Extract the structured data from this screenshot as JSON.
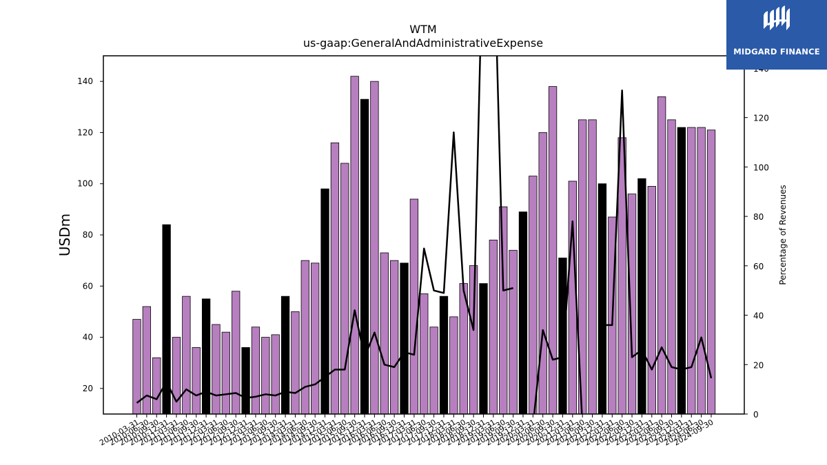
{
  "chart_data": {
    "type": "bar",
    "title": "WTM",
    "subtitle": "us-gaap:GeneralAndAdministrativeExpense",
    "ylabel": "USDm",
    "y2label": "Percentage of Revenues",
    "ylim": [
      10,
      150
    ],
    "y2lim": [
      0,
      145
    ],
    "yticks": [
      20,
      40,
      60,
      80,
      100,
      120,
      140
    ],
    "y2ticks": [
      0,
      20,
      40,
      60,
      80,
      100,
      120,
      140
    ],
    "colors": {
      "quarter_bar": "#b77fc0",
      "annual_bar": "#000000",
      "line": "#000000",
      "edge": "#000000"
    },
    "categories": [
      "2010-03-31",
      "2010-06-30",
      "2010-09-30",
      "2010-12-31",
      "2011-03-31",
      "2011-06-30",
      "2011-09-30",
      "2011-12-31",
      "2012-03-31",
      "2012-06-30",
      "2012-09-30",
      "2012-12-31",
      "2013-03-31",
      "2013-06-30",
      "2013-09-30",
      "2013-12-31",
      "2014-03-31",
      "2014-06-30",
      "2014-09-30",
      "2014-12-31",
      "2015-03-31",
      "2015-06-30",
      "2015-09-30",
      "2015-12-31",
      "2016-03-31",
      "2016-06-30",
      "2016-09-30",
      "2016-12-31",
      "2017-03-31",
      "2017-06-30",
      "2017-09-30",
      "2017-12-31",
      "2018-03-31",
      "2018-06-30",
      "2018-09-30",
      "2018-12-31",
      "2019-03-31",
      "2019-06-30",
      "2019-09-30",
      "2019-12-31",
      "2020-03-31",
      "2020-06-30",
      "2020-09-30",
      "2020-12-31",
      "2021-03-31",
      "2021-06-30",
      "2021-09-30",
      "2021-12-31",
      "2022-03-31",
      "2022-06-30",
      "2022-09-30",
      "2022-12-31",
      "2023-03-31",
      "2023-06-30",
      "2023-09-30",
      "2023-12-31",
      "2024-03-31",
      "2024-06-30",
      "2024-09-30"
    ],
    "series": [
      {
        "kind": "bar",
        "values": [
          47,
          52,
          32,
          84,
          40,
          56,
          36,
          55,
          45,
          42,
          58,
          36,
          44,
          40,
          41,
          56,
          50,
          70,
          69,
          98,
          116,
          108,
          142,
          133,
          140,
          73,
          70,
          69,
          94,
          57,
          44,
          56,
          48,
          61,
          68,
          61,
          78,
          91,
          74,
          89,
          103,
          120,
          138,
          71,
          101,
          125,
          125,
          100,
          87,
          118,
          96,
          102,
          99,
          134,
          125,
          122,
          122,
          122,
          121
        ],
        "annual_flags": [
          0,
          0,
          0,
          1,
          0,
          0,
          0,
          1,
          0,
          0,
          0,
          1,
          0,
          0,
          0,
          1,
          0,
          0,
          0,
          1,
          0,
          0,
          0,
          1,
          0,
          0,
          0,
          1,
          0,
          0,
          0,
          1,
          0,
          0,
          0,
          1,
          0,
          0,
          0,
          1,
          0,
          0,
          0,
          1,
          0,
          0,
          0,
          1,
          0,
          0,
          0,
          1,
          0,
          0,
          0,
          1,
          0,
          0,
          0
        ]
      },
      {
        "kind": "line",
        "axis": "right",
        "values": [
          4.5,
          7.5,
          6,
          13,
          5,
          10,
          7.5,
          9,
          7.5,
          8,
          8.5,
          6.5,
          7,
          8,
          7.5,
          9,
          8.5,
          11,
          12,
          15,
          18,
          18,
          42,
          23,
          33,
          20,
          19,
          25,
          24,
          67,
          50,
          49,
          114,
          50,
          34,
          200,
          200,
          50,
          51,
          null,
          -5,
          34,
          22,
          23,
          78,
          -5,
          null,
          36,
          36,
          131,
          23,
          26,
          18,
          27,
          19,
          18,
          19,
          31,
          14.5
        ]
      }
    ]
  },
  "logo": {
    "text": "MIDGARD FINANCE"
  }
}
